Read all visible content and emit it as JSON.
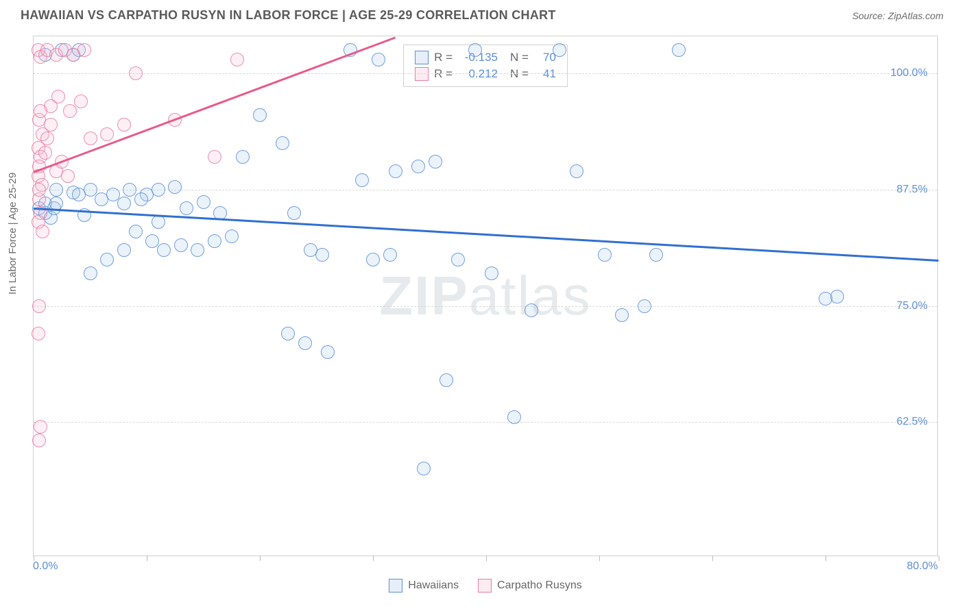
{
  "header": {
    "title": "HAWAIIAN VS CARPATHO RUSYN IN LABOR FORCE | AGE 25-29 CORRELATION CHART",
    "source": "Source: ZipAtlas.com"
  },
  "chart": {
    "type": "scatter",
    "y_axis_label": "In Labor Force | Age 25-29",
    "background_color": "#ffffff",
    "border_color": "#cfcfcf",
    "grid_color": "#d8d8d8",
    "tick_label_color": "#5b8dd6",
    "axis_label_color": "#6a6a6a",
    "xlim": [
      0,
      80
    ],
    "ylim": [
      48,
      104
    ],
    "x_ticks": [
      0,
      10,
      20,
      30,
      40,
      50,
      60,
      70,
      80
    ],
    "x_tick_labels": {
      "left": "0.0%",
      "right": "80.0%"
    },
    "y_ticks": [
      62.5,
      75.0,
      87.5,
      100.0
    ],
    "y_tick_labels": [
      "62.5%",
      "75.0%",
      "87.5%",
      "100.0%"
    ],
    "marker_radius": 10,
    "marker_stroke_width": 1.5,
    "marker_fill_opacity": 0.28,
    "watermark": "ZIPatlas",
    "series": [
      {
        "name": "Hawaiians",
        "marker_stroke": "#5b8dd6",
        "marker_fill": "#a6c4ea",
        "trend_color": "#2f6fd0",
        "trend_width": 3,
        "trend": {
          "x1": 0,
          "y1": 85.6,
          "x2": 80,
          "y2": 80.0
        },
        "stats": {
          "R": "-0.135",
          "N": "70"
        },
        "points": [
          [
            0.5,
            85.5
          ],
          [
            1.0,
            85.0
          ],
          [
            1.0,
            86.0
          ],
          [
            1.5,
            84.5
          ],
          [
            1.8,
            85.5
          ],
          [
            2.0,
            86.0
          ],
          [
            1.0,
            102.0
          ],
          [
            2.5,
            102.5
          ],
          [
            3.5,
            102.0
          ],
          [
            4.0,
            102.5
          ],
          [
            2.0,
            87.5
          ],
          [
            3.5,
            87.2
          ],
          [
            4.0,
            87.0
          ],
          [
            5.0,
            87.5
          ],
          [
            7.0,
            87.0
          ],
          [
            8.5,
            87.5
          ],
          [
            10.0,
            87.0
          ],
          [
            4.5,
            84.8
          ],
          [
            6.0,
            86.5
          ],
          [
            8.0,
            86.0
          ],
          [
            9.5,
            86.5
          ],
          [
            11.0,
            87.5
          ],
          [
            5.0,
            78.5
          ],
          [
            6.5,
            80.0
          ],
          [
            8.0,
            81.0
          ],
          [
            9.0,
            83.0
          ],
          [
            10.5,
            82.0
          ],
          [
            11.5,
            81.0
          ],
          [
            13.0,
            81.5
          ],
          [
            14.5,
            81.0
          ],
          [
            11.0,
            84.0
          ],
          [
            12.5,
            87.8
          ],
          [
            13.5,
            85.5
          ],
          [
            15.0,
            86.2
          ],
          [
            16.5,
            85.0
          ],
          [
            16.0,
            82.0
          ],
          [
            17.5,
            82.5
          ],
          [
            18.5,
            91.0
          ],
          [
            20.0,
            95.5
          ],
          [
            22.0,
            92.5
          ],
          [
            23.0,
            85.0
          ],
          [
            24.5,
            81.0
          ],
          [
            25.5,
            80.5
          ],
          [
            22.5,
            72.0
          ],
          [
            24.0,
            71.0
          ],
          [
            26.0,
            70.0
          ],
          [
            28.0,
            102.5
          ],
          [
            29.0,
            88.5
          ],
          [
            30.0,
            80.0
          ],
          [
            31.5,
            80.5
          ],
          [
            30.5,
            101.5
          ],
          [
            32.0,
            89.5
          ],
          [
            34.0,
            90.0
          ],
          [
            35.5,
            90.5
          ],
          [
            37.5,
            80.0
          ],
          [
            39.0,
            102.5
          ],
          [
            36.5,
            67.0
          ],
          [
            40.5,
            78.5
          ],
          [
            42.5,
            63.0
          ],
          [
            44.0,
            74.5
          ],
          [
            46.5,
            102.5
          ],
          [
            48.0,
            89.5
          ],
          [
            50.5,
            80.5
          ],
          [
            52.0,
            74.0
          ],
          [
            55.0,
            80.5
          ],
          [
            57.0,
            102.5
          ],
          [
            34.5,
            57.5
          ],
          [
            54.0,
            75.0
          ],
          [
            71.0,
            76.0
          ],
          [
            70.0,
            75.8
          ]
        ]
      },
      {
        "name": "Carpatho Rusyns",
        "marker_stroke": "#e87ba0",
        "marker_fill": "#f4b9ce",
        "trend_color": "#e85a88",
        "trend_width": 3,
        "trend": {
          "x1": 0,
          "y1": 89.5,
          "x2": 32,
          "y2": 104.0
        },
        "stats": {
          "R": "0.212",
          "N": "41"
        },
        "points": [
          [
            0.4,
            102.5
          ],
          [
            0.6,
            101.8
          ],
          [
            1.2,
            102.5
          ],
          [
            2.0,
            102.0
          ],
          [
            2.8,
            102.5
          ],
          [
            3.5,
            102.0
          ],
          [
            4.5,
            102.5
          ],
          [
            0.5,
            95.0
          ],
          [
            0.8,
            93.5
          ],
          [
            0.4,
            92.0
          ],
          [
            0.6,
            91.0
          ],
          [
            0.5,
            90.0
          ],
          [
            0.4,
            89.0
          ],
          [
            0.7,
            88.0
          ],
          [
            0.5,
            86.5
          ],
          [
            0.6,
            85.0
          ],
          [
            0.4,
            84.0
          ],
          [
            0.8,
            83.0
          ],
          [
            0.5,
            87.5
          ],
          [
            1.0,
            91.5
          ],
          [
            1.2,
            93.0
          ],
          [
            1.5,
            94.5
          ],
          [
            2.0,
            89.5
          ],
          [
            2.5,
            90.5
          ],
          [
            3.0,
            89.0
          ],
          [
            5.0,
            93.0
          ],
          [
            6.5,
            93.5
          ],
          [
            8.0,
            94.5
          ],
          [
            9.0,
            100.0
          ],
          [
            12.5,
            95.0
          ],
          [
            16.0,
            91.0
          ],
          [
            18.0,
            101.5
          ],
          [
            0.5,
            75.0
          ],
          [
            0.4,
            72.0
          ],
          [
            0.6,
            62.0
          ],
          [
            0.5,
            60.5
          ],
          [
            1.5,
            96.5
          ],
          [
            2.2,
            97.5
          ],
          [
            3.2,
            96.0
          ],
          [
            4.2,
            97.0
          ],
          [
            0.6,
            96.0
          ]
        ]
      }
    ]
  },
  "stats_box": {
    "rows": [
      {
        "swatch_fill": "#a6c4ea",
        "swatch_stroke": "#5b8dd6",
        "R": "-0.135",
        "N": "70"
      },
      {
        "swatch_fill": "#f4b9ce",
        "swatch_stroke": "#e87ba0",
        "R": "0.212",
        "N": "41"
      }
    ],
    "label_R": "R =",
    "label_N": "N ="
  },
  "legend": {
    "items": [
      {
        "label": "Hawaiians",
        "swatch_fill": "#a6c4ea",
        "swatch_stroke": "#5b8dd6"
      },
      {
        "label": "Carpatho Rusyns",
        "swatch_fill": "#f4b9ce",
        "swatch_stroke": "#e87ba0"
      }
    ]
  }
}
